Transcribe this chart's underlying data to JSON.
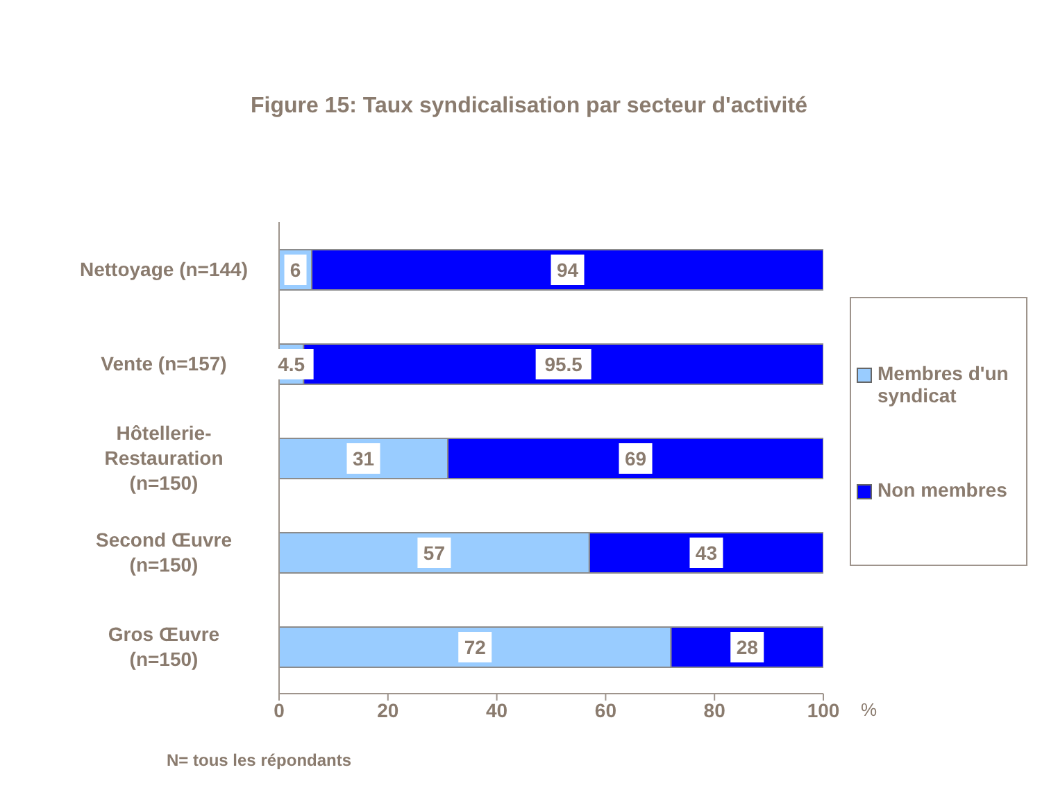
{
  "chart_data": {
    "type": "bar",
    "orientation": "horizontal",
    "stacked": true,
    "title": "Figure 15: Taux syndicalisation par secteur d'activité",
    "xlabel": "%",
    "categories": [
      "Nettoyage (n=144)",
      "Vente (n=157)",
      "Hôtellerie-Restauration (n=150)",
      "Second Œuvre (n=150)",
      "Gros Œuvre (n=150)"
    ],
    "series": [
      {
        "name": "Membres d'un syndicat",
        "color": "#99ccff",
        "values": [
          6,
          4.5,
          31,
          57,
          72
        ]
      },
      {
        "name": "Non membres",
        "color": "#0000ff",
        "values": [
          94,
          95.5,
          69,
          43,
          28
        ]
      }
    ],
    "xlim": [
      0,
      100
    ],
    "xticks": [
      0,
      20,
      40,
      60,
      80,
      100
    ],
    "data_labels": true,
    "legend": "right",
    "grid": false,
    "annotations": [
      "N= tous les répondants"
    ]
  }
}
